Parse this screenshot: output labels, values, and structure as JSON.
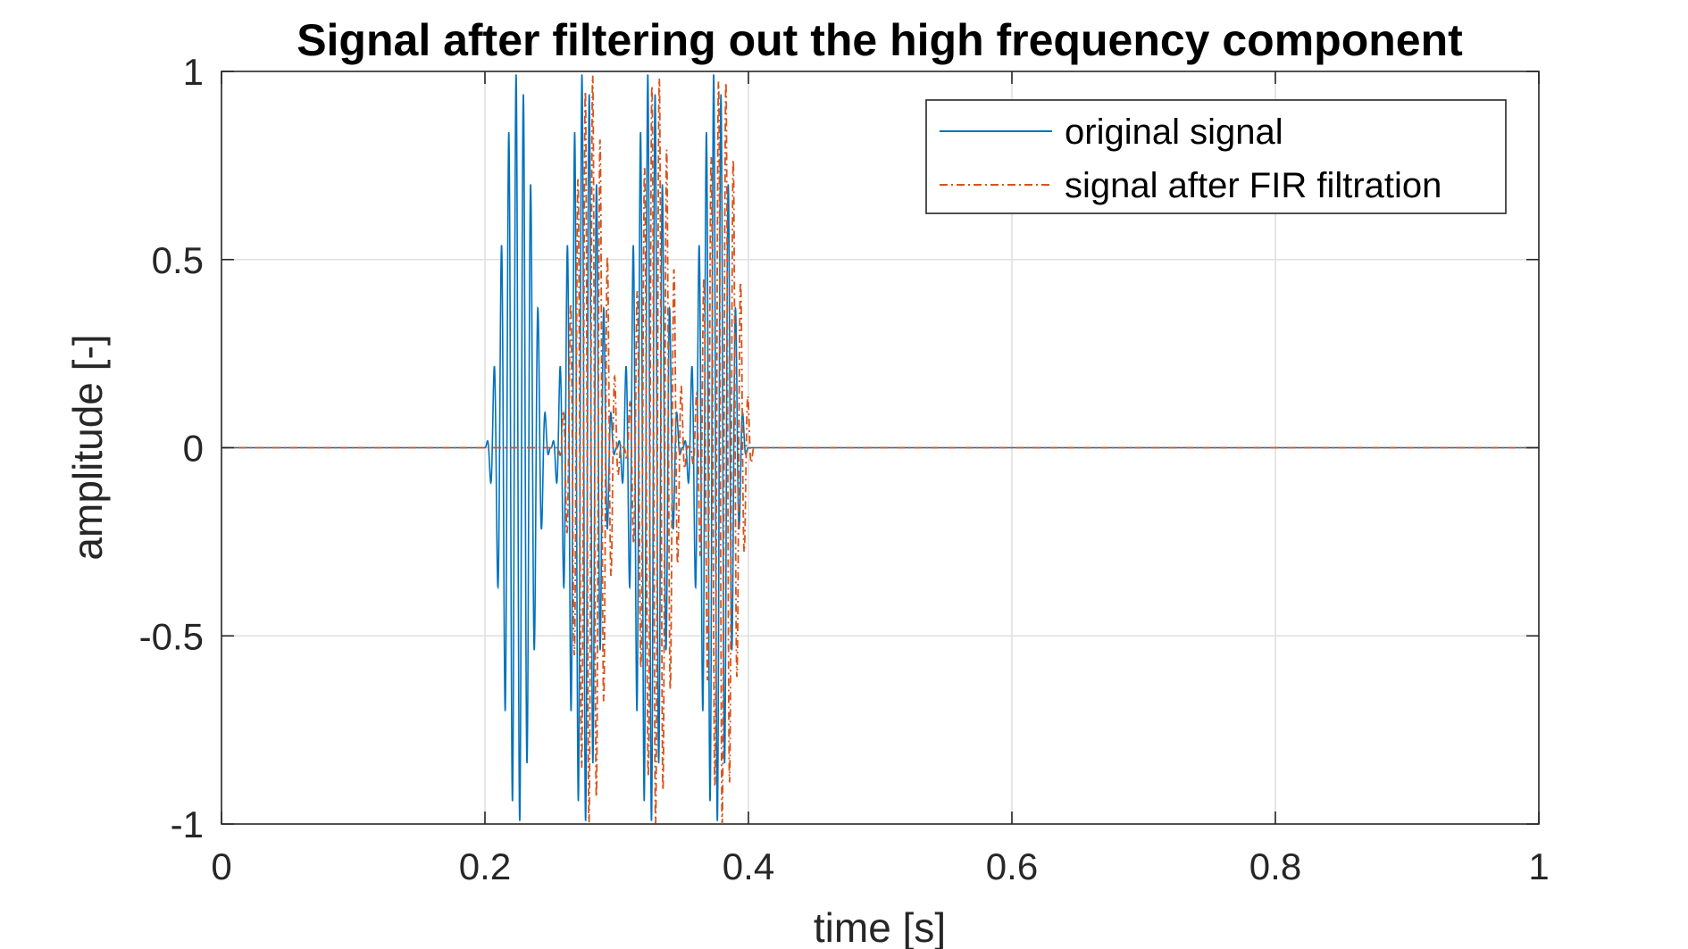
{
  "chart_data": {
    "type": "line",
    "title": "Signal after filtering out the high frequency component",
    "xlabel": "time [s]",
    "ylabel": "amplitude [-]",
    "xlim": [
      0,
      1
    ],
    "ylim": [
      -1,
      1
    ],
    "xticks": [
      0,
      0.2,
      0.4,
      0.6,
      0.8,
      1
    ],
    "xtick_labels": [
      "0",
      "0.2",
      "0.4",
      "0.6",
      "0.8",
      "1"
    ],
    "yticks": [
      -1,
      -0.5,
      0,
      0.5,
      1
    ],
    "ytick_labels": [
      "-1",
      "-0.5",
      "0",
      "0.5",
      "1"
    ],
    "grid": true,
    "legend_position": "top-right",
    "series": [
      {
        "name": "original signal",
        "color": "#0072bd",
        "line_style": "solid",
        "bursts": [
          {
            "t_start": 0.2,
            "t_end": 0.25,
            "peak": 1.0
          },
          {
            "t_start": 0.25,
            "t_end": 0.3,
            "peak": 1.0
          },
          {
            "t_start": 0.3,
            "t_end": 0.35,
            "peak": 1.0
          },
          {
            "t_start": 0.35,
            "t_end": 0.4,
            "peak": 1.0
          }
        ],
        "baseline": 0
      },
      {
        "name": "signal after FIR filtration",
        "color": "#d95319",
        "line_style": "dash-dot",
        "bursts": [
          {
            "t_start": 0.2,
            "t_end": 0.25,
            "peak": 0.0
          },
          {
            "t_start": 0.255,
            "t_end": 0.305,
            "peak": 1.0
          },
          {
            "t_start": 0.305,
            "t_end": 0.355,
            "peak": 1.0
          },
          {
            "t_start": 0.355,
            "t_end": 0.405,
            "peak": 1.0
          }
        ],
        "baseline": 0
      }
    ]
  }
}
